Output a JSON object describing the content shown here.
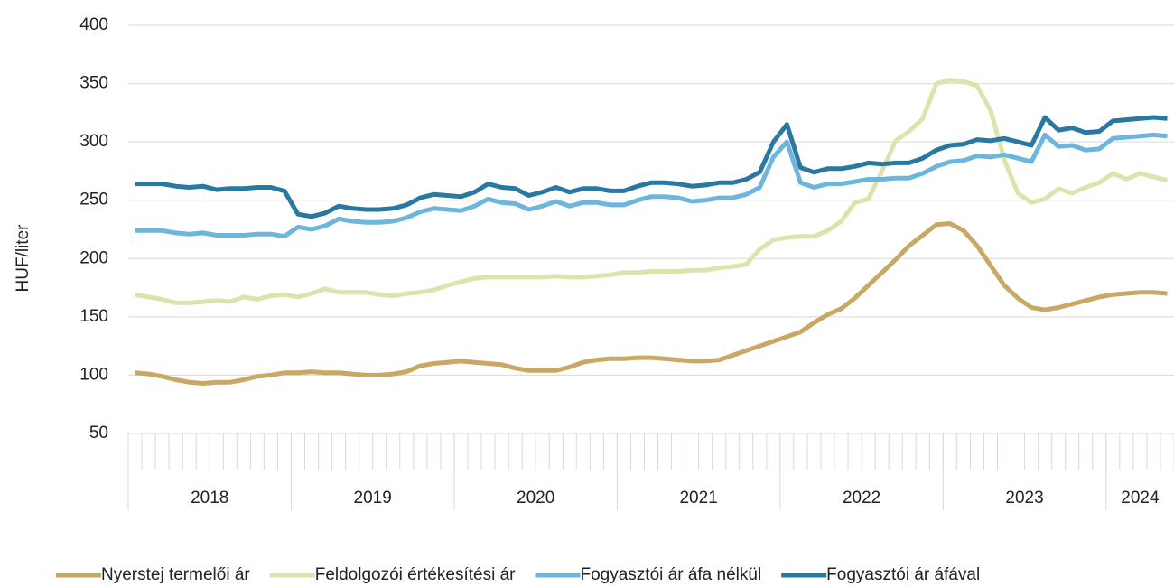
{
  "chart_data": {
    "type": "line",
    "y_label": "HUF/liter",
    "categories": [
      null,
      null,
      null,
      null,
      null,
      null,
      null,
      null,
      null,
      null,
      null,
      null,
      null,
      null,
      null,
      null,
      null,
      null,
      null,
      null,
      null,
      null,
      null,
      null,
      null,
      null,
      null,
      null,
      null,
      null,
      null,
      null,
      null,
      null,
      null,
      null,
      null,
      null,
      null,
      null,
      null,
      null,
      null,
      null,
      null,
      null,
      null,
      null,
      null,
      null,
      null,
      null,
      null,
      null,
      null,
      null,
      null,
      null,
      null,
      null,
      null,
      null,
      null,
      null,
      null,
      null,
      null,
      null,
      null,
      null,
      null,
      null,
      null,
      null,
      null,
      null,
      null
    ],
    "groups": [
      {
        "label": "2018",
        "size": 12
      },
      {
        "label": "2019",
        "size": 12
      },
      {
        "label": "2020",
        "size": 12
      },
      {
        "label": "2021",
        "size": 12
      },
      {
        "label": "2022",
        "size": 12
      },
      {
        "label": "2023",
        "size": 12
      },
      {
        "label": "2024",
        "size": 5
      }
    ],
    "ylim": [
      50,
      400
    ],
    "yticks": [
      50,
      100,
      150,
      200,
      250,
      300,
      350,
      400
    ],
    "grid": true,
    "legend": "bottom",
    "series": [
      {
        "name": "Nyerstej termelői ár",
        "color": "#c9a865",
        "values": [
          102,
          101,
          99,
          96,
          94,
          93,
          94,
          94,
          96,
          99,
          100,
          102,
          102,
          103,
          102,
          102,
          101,
          100,
          100,
          101,
          103,
          108,
          110,
          111,
          112,
          111,
          110,
          109,
          106,
          104,
          104,
          104,
          107,
          111,
          113,
          114,
          114,
          115,
          115,
          114,
          113,
          112,
          112,
          113,
          117,
          121,
          125,
          129,
          133,
          137,
          145,
          152,
          157,
          166,
          177,
          188,
          199,
          211,
          220,
          229,
          230,
          224,
          211,
          194,
          177,
          166,
          158,
          156,
          158,
          161,
          164,
          167,
          169,
          170,
          171,
          171,
          170
        ]
      },
      {
        "name": "Feldolgozói értékesítési ár",
        "color": "#dde3ad",
        "values": [
          169,
          167,
          165,
          162,
          162,
          163,
          164,
          163,
          167,
          165,
          168,
          169,
          167,
          170,
          174,
          171,
          171,
          171,
          169,
          168,
          170,
          171,
          173,
          177,
          180,
          183,
          184,
          184,
          184,
          184,
          184,
          185,
          184,
          184,
          185,
          186,
          188,
          188,
          189,
          189,
          189,
          190,
          190,
          192,
          193,
          195,
          208,
          216,
          218,
          219,
          219,
          224,
          232,
          248,
          251,
          275,
          301,
          309,
          320,
          350,
          353,
          352,
          348,
          327,
          285,
          256,
          248,
          251,
          260,
          256,
          261,
          265,
          273,
          268,
          273,
          270,
          267
        ]
      },
      {
        "name": "Fogyasztói ár áfa nélkül",
        "color": "#6cb6dd",
        "values": [
          224,
          224,
          224,
          222,
          221,
          222,
          220,
          220,
          220,
          221,
          221,
          219,
          227,
          225,
          228,
          234,
          232,
          231,
          231,
          232,
          235,
          240,
          243,
          242,
          241,
          245,
          251,
          248,
          247,
          242,
          245,
          249,
          245,
          248,
          248,
          246,
          246,
          250,
          253,
          253,
          252,
          249,
          250,
          252,
          252,
          255,
          261,
          287,
          300,
          265,
          261,
          264,
          264,
          266,
          268,
          268,
          269,
          269,
          273,
          279,
          283,
          284,
          288,
          287,
          289,
          286,
          283,
          306,
          296,
          297,
          293,
          294,
          303,
          304,
          305,
          306,
          305
        ]
      },
      {
        "name": "Fogyasztói ár áfával",
        "color": "#2878a2",
        "values": [
          264,
          264,
          264,
          262,
          261,
          262,
          259,
          260,
          260,
          261,
          261,
          258,
          238,
          236,
          239,
          245,
          243,
          242,
          242,
          243,
          246,
          252,
          255,
          254,
          253,
          257,
          264,
          261,
          260,
          254,
          257,
          261,
          257,
          260,
          260,
          258,
          258,
          262,
          265,
          265,
          264,
          262,
          263,
          265,
          265,
          268,
          274,
          300,
          315,
          278,
          274,
          277,
          277,
          279,
          282,
          281,
          282,
          282,
          286,
          293,
          297,
          298,
          302,
          301,
          303,
          300,
          297,
          321,
          310,
          312,
          308,
          309,
          318,
          319,
          320,
          321,
          320
        ]
      }
    ]
  }
}
